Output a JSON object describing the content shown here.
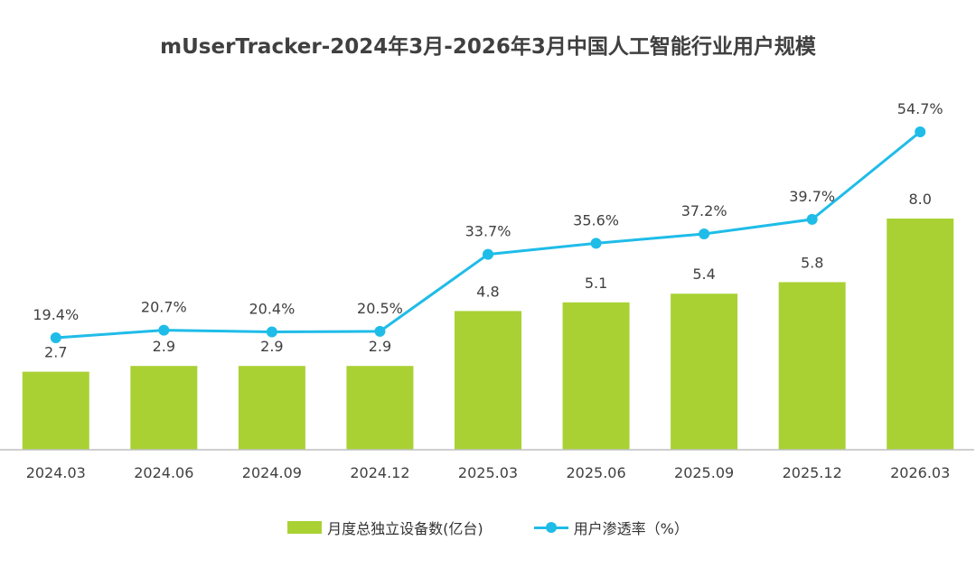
{
  "chart_data": {
    "type": "bar",
    "title": "mUserTracker-2024年3月-2026年3月中国人工智能行业用户规模",
    "categories": [
      "2024.03",
      "2024.06",
      "2024.09",
      "2024.12",
      "2025.03",
      "2025.06",
      "2025.09",
      "2025.12",
      "2026.03"
    ],
    "series": [
      {
        "name": "月度总独立设备数(亿台)",
        "type": "bar",
        "values": [
          2.7,
          2.9,
          2.9,
          2.9,
          4.8,
          5.1,
          5.4,
          5.8,
          8.0
        ],
        "labels": [
          "2.7",
          "2.9",
          "2.9",
          "2.9",
          "4.8",
          "5.1",
          "5.4",
          "5.8",
          "8.0"
        ]
      },
      {
        "name": "用户渗透率（%）",
        "type": "line",
        "values": [
          19.4,
          20.7,
          20.4,
          20.5,
          33.7,
          35.6,
          37.2,
          39.7,
          54.7
        ],
        "labels": [
          "19.4%",
          "20.7%",
          "20.4%",
          "20.5%",
          "33.7%",
          "35.6%",
          "37.2%",
          "39.7%",
          "54.7%"
        ]
      }
    ],
    "xlabel": "",
    "ylabel": "",
    "bar_ylim": [
      0,
      10
    ],
    "line_ylim": [
      -25,
      58
    ],
    "grid": false,
    "legend_position": "bottom",
    "colors": {
      "bar": "#A9D134",
      "line": "#1FBCE8",
      "axis": "#BFBFBF",
      "text": "#404040"
    }
  }
}
